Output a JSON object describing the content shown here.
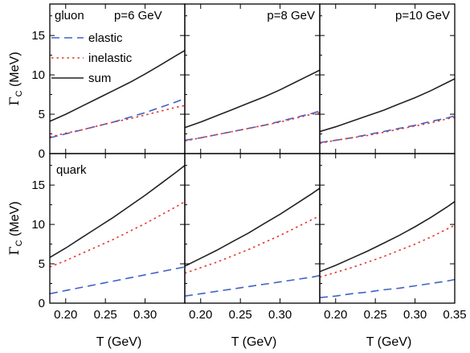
{
  "chart_data": {
    "type": "line",
    "xlabel": "T (GeV)",
    "ylabel_main": "Γ",
    "ylabel_sub": "C",
    "ylabel_unit": "(MeV)",
    "xlim": [
      0.18,
      0.35
    ],
    "ylim": [
      0,
      19
    ],
    "xticks": [
      0.2,
      0.25,
      0.3,
      0.35
    ],
    "xtick_labels": [
      "0.20",
      "0.25",
      "0.30",
      "0.35"
    ],
    "yticks": [
      0,
      5,
      10,
      15
    ],
    "ytick_labels": [
      "0",
      "5",
      "10",
      "15"
    ],
    "legend": {
      "placement": "top-left of first panel",
      "entries": [
        "elastic",
        "inelastic",
        "sum"
      ]
    },
    "series_styles": {
      "elastic": {
        "color": "#3f62c8",
        "dash": "10,6"
      },
      "inelastic": {
        "color": "#e8352e",
        "dash": "2.5,4"
      },
      "sum": {
        "color": "#222222",
        "dash": ""
      }
    },
    "panels": [
      {
        "row": 0,
        "col": 0,
        "labels": [
          "gluon",
          "p=6 GeV"
        ],
        "x": [
          0.18,
          0.2,
          0.22,
          0.24,
          0.26,
          0.28,
          0.3,
          0.32,
          0.34,
          0.35,
          0.358
        ],
        "series": {
          "elastic": [
            2.0,
            2.5,
            3.0,
            3.5,
            4.0,
            4.6,
            5.2,
            5.9,
            6.6,
            7.0,
            7.2
          ],
          "inelastic": [
            2.1,
            2.6,
            3.0,
            3.5,
            4.0,
            4.4,
            4.9,
            5.4,
            5.9,
            6.1,
            6.2
          ],
          "sum": [
            4.1,
            5.0,
            6.0,
            7.0,
            8.0,
            9.0,
            10.1,
            11.3,
            12.5,
            13.1,
            13.5
          ]
        }
      },
      {
        "row": 0,
        "col": 1,
        "labels": [
          "p=8 GeV"
        ],
        "x": [
          0.18,
          0.2,
          0.22,
          0.24,
          0.26,
          0.28,
          0.3,
          0.32,
          0.34,
          0.35,
          0.358
        ],
        "series": {
          "elastic": [
            1.7,
            2.0,
            2.4,
            2.8,
            3.2,
            3.6,
            4.1,
            4.6,
            5.1,
            5.4,
            5.6
          ],
          "inelastic": [
            1.6,
            2.0,
            2.4,
            2.8,
            3.2,
            3.6,
            4.0,
            4.5,
            5.0,
            5.2,
            5.4
          ],
          "sum": [
            3.3,
            4.0,
            4.8,
            5.6,
            6.4,
            7.2,
            8.1,
            9.1,
            10.1,
            10.6,
            11.0
          ]
        }
      },
      {
        "row": 0,
        "col": 2,
        "labels": [
          "p=10 GeV"
        ],
        "x": [
          0.18,
          0.2,
          0.22,
          0.24,
          0.26,
          0.28,
          0.3,
          0.32,
          0.34,
          0.35
        ],
        "series": {
          "elastic": [
            1.4,
            1.7,
            2.0,
            2.4,
            2.8,
            3.2,
            3.6,
            4.1,
            4.5,
            4.8
          ],
          "inelastic": [
            1.3,
            1.7,
            2.0,
            2.3,
            2.7,
            3.1,
            3.5,
            3.9,
            4.4,
            4.6
          ],
          "sum": [
            2.8,
            3.4,
            4.1,
            4.8,
            5.5,
            6.3,
            7.1,
            8.0,
            9.0,
            9.5
          ]
        }
      },
      {
        "row": 1,
        "col": 0,
        "labels": [
          "quark"
        ],
        "x": [
          0.18,
          0.2,
          0.22,
          0.24,
          0.26,
          0.28,
          0.3,
          0.32,
          0.34,
          0.35,
          0.358
        ],
        "series": {
          "elastic": [
            1.2,
            1.6,
            2.0,
            2.4,
            2.8,
            3.2,
            3.6,
            4.0,
            4.4,
            4.6,
            4.8
          ],
          "inelastic": [
            4.6,
            5.4,
            6.3,
            7.2,
            8.1,
            9.1,
            10.1,
            11.2,
            12.3,
            12.9,
            13.3
          ],
          "sum": [
            5.8,
            7.0,
            8.3,
            9.6,
            10.9,
            12.3,
            13.7,
            15.2,
            16.7,
            17.5,
            18.1
          ]
        }
      },
      {
        "row": 1,
        "col": 1,
        "labels": [],
        "x": [
          0.18,
          0.2,
          0.22,
          0.24,
          0.26,
          0.28,
          0.3,
          0.32,
          0.34,
          0.35,
          0.358
        ],
        "series": {
          "elastic": [
            0.9,
            1.2,
            1.5,
            1.8,
            2.1,
            2.4,
            2.7,
            3.0,
            3.3,
            3.5,
            3.6
          ],
          "inelastic": [
            3.8,
            4.5,
            5.2,
            6.0,
            6.8,
            7.7,
            8.6,
            9.6,
            10.6,
            11.1,
            11.5
          ],
          "sum": [
            4.7,
            5.7,
            6.7,
            7.8,
            8.9,
            10.1,
            11.3,
            12.6,
            13.9,
            14.6,
            15.1
          ]
        }
      },
      {
        "row": 1,
        "col": 2,
        "labels": [],
        "x": [
          0.18,
          0.2,
          0.22,
          0.24,
          0.26,
          0.28,
          0.3,
          0.32,
          0.34,
          0.35
        ],
        "series": {
          "elastic": [
            0.7,
            0.9,
            1.2,
            1.4,
            1.7,
            1.9,
            2.2,
            2.5,
            2.8,
            3.0
          ],
          "inelastic": [
            3.3,
            3.9,
            4.5,
            5.2,
            5.9,
            6.7,
            7.5,
            8.4,
            9.4,
            9.9
          ],
          "sum": [
            4.0,
            4.8,
            5.7,
            6.6,
            7.6,
            8.6,
            9.7,
            10.9,
            12.2,
            12.9
          ]
        }
      }
    ]
  }
}
